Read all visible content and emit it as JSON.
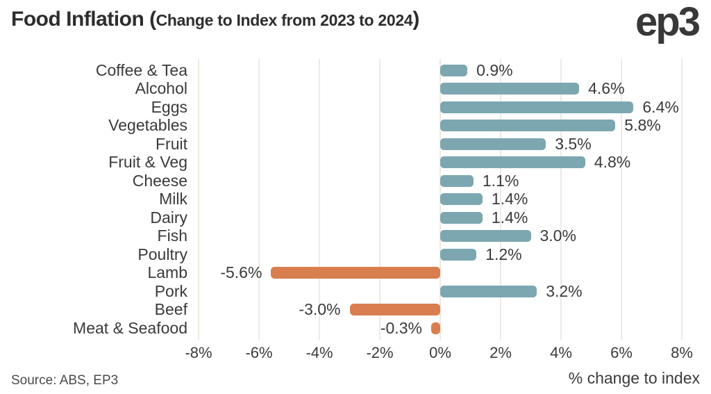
{
  "header": {
    "title_main": "Food Inflation (",
    "title_paren": "Change to Index from 2023 to 2024",
    "title_close": ")",
    "logo": "ep3"
  },
  "footer": {
    "source": "Source: ABS, EP3"
  },
  "colors": {
    "positive_bar": "#7ca7b1",
    "negative_bar": "#d97f4f",
    "gridline": "#edeae3",
    "title_text": "#2d2d2d",
    "label_text": "#3a3a3a"
  },
  "chart_data": {
    "type": "bar",
    "orientation": "horizontal",
    "title": "Food Inflation (Change to Index from 2023 to 2024)",
    "categories": [
      "Coffee & Tea",
      "Alcohol",
      "Eggs",
      "Vegetables",
      "Fruit",
      "Fruit & Veg",
      "Cheese",
      "Milk",
      "Dairy",
      "Fish",
      "Poultry",
      "Lamb",
      "Pork",
      "Beef",
      "Meat & Seafood"
    ],
    "values": [
      0.9,
      4.6,
      6.4,
      5.8,
      3.5,
      4.8,
      1.1,
      1.4,
      1.4,
      3.0,
      1.2,
      -5.6,
      3.2,
      -3.0,
      -0.3
    ],
    "value_labels": [
      "0.9%",
      "4.6%",
      "6.4%",
      "5.8%",
      "3.5%",
      "4.8%",
      "1.1%",
      "1.4%",
      "1.4%",
      "3.0%",
      "1.2%",
      "-5.6%",
      "3.2%",
      "-3.0%",
      "-0.3%"
    ],
    "xlim": [
      -8,
      8
    ],
    "xticks": [
      -8,
      -6,
      -4,
      -2,
      0,
      2,
      4,
      6,
      8
    ],
    "xtick_labels": [
      "-8%",
      "-6%",
      "-4%",
      "-2%",
      "0%",
      "2%",
      "4%",
      "6%",
      "8%"
    ],
    "xlabel": "% change to index",
    "ylabel": "",
    "grid": true,
    "legend": false
  }
}
